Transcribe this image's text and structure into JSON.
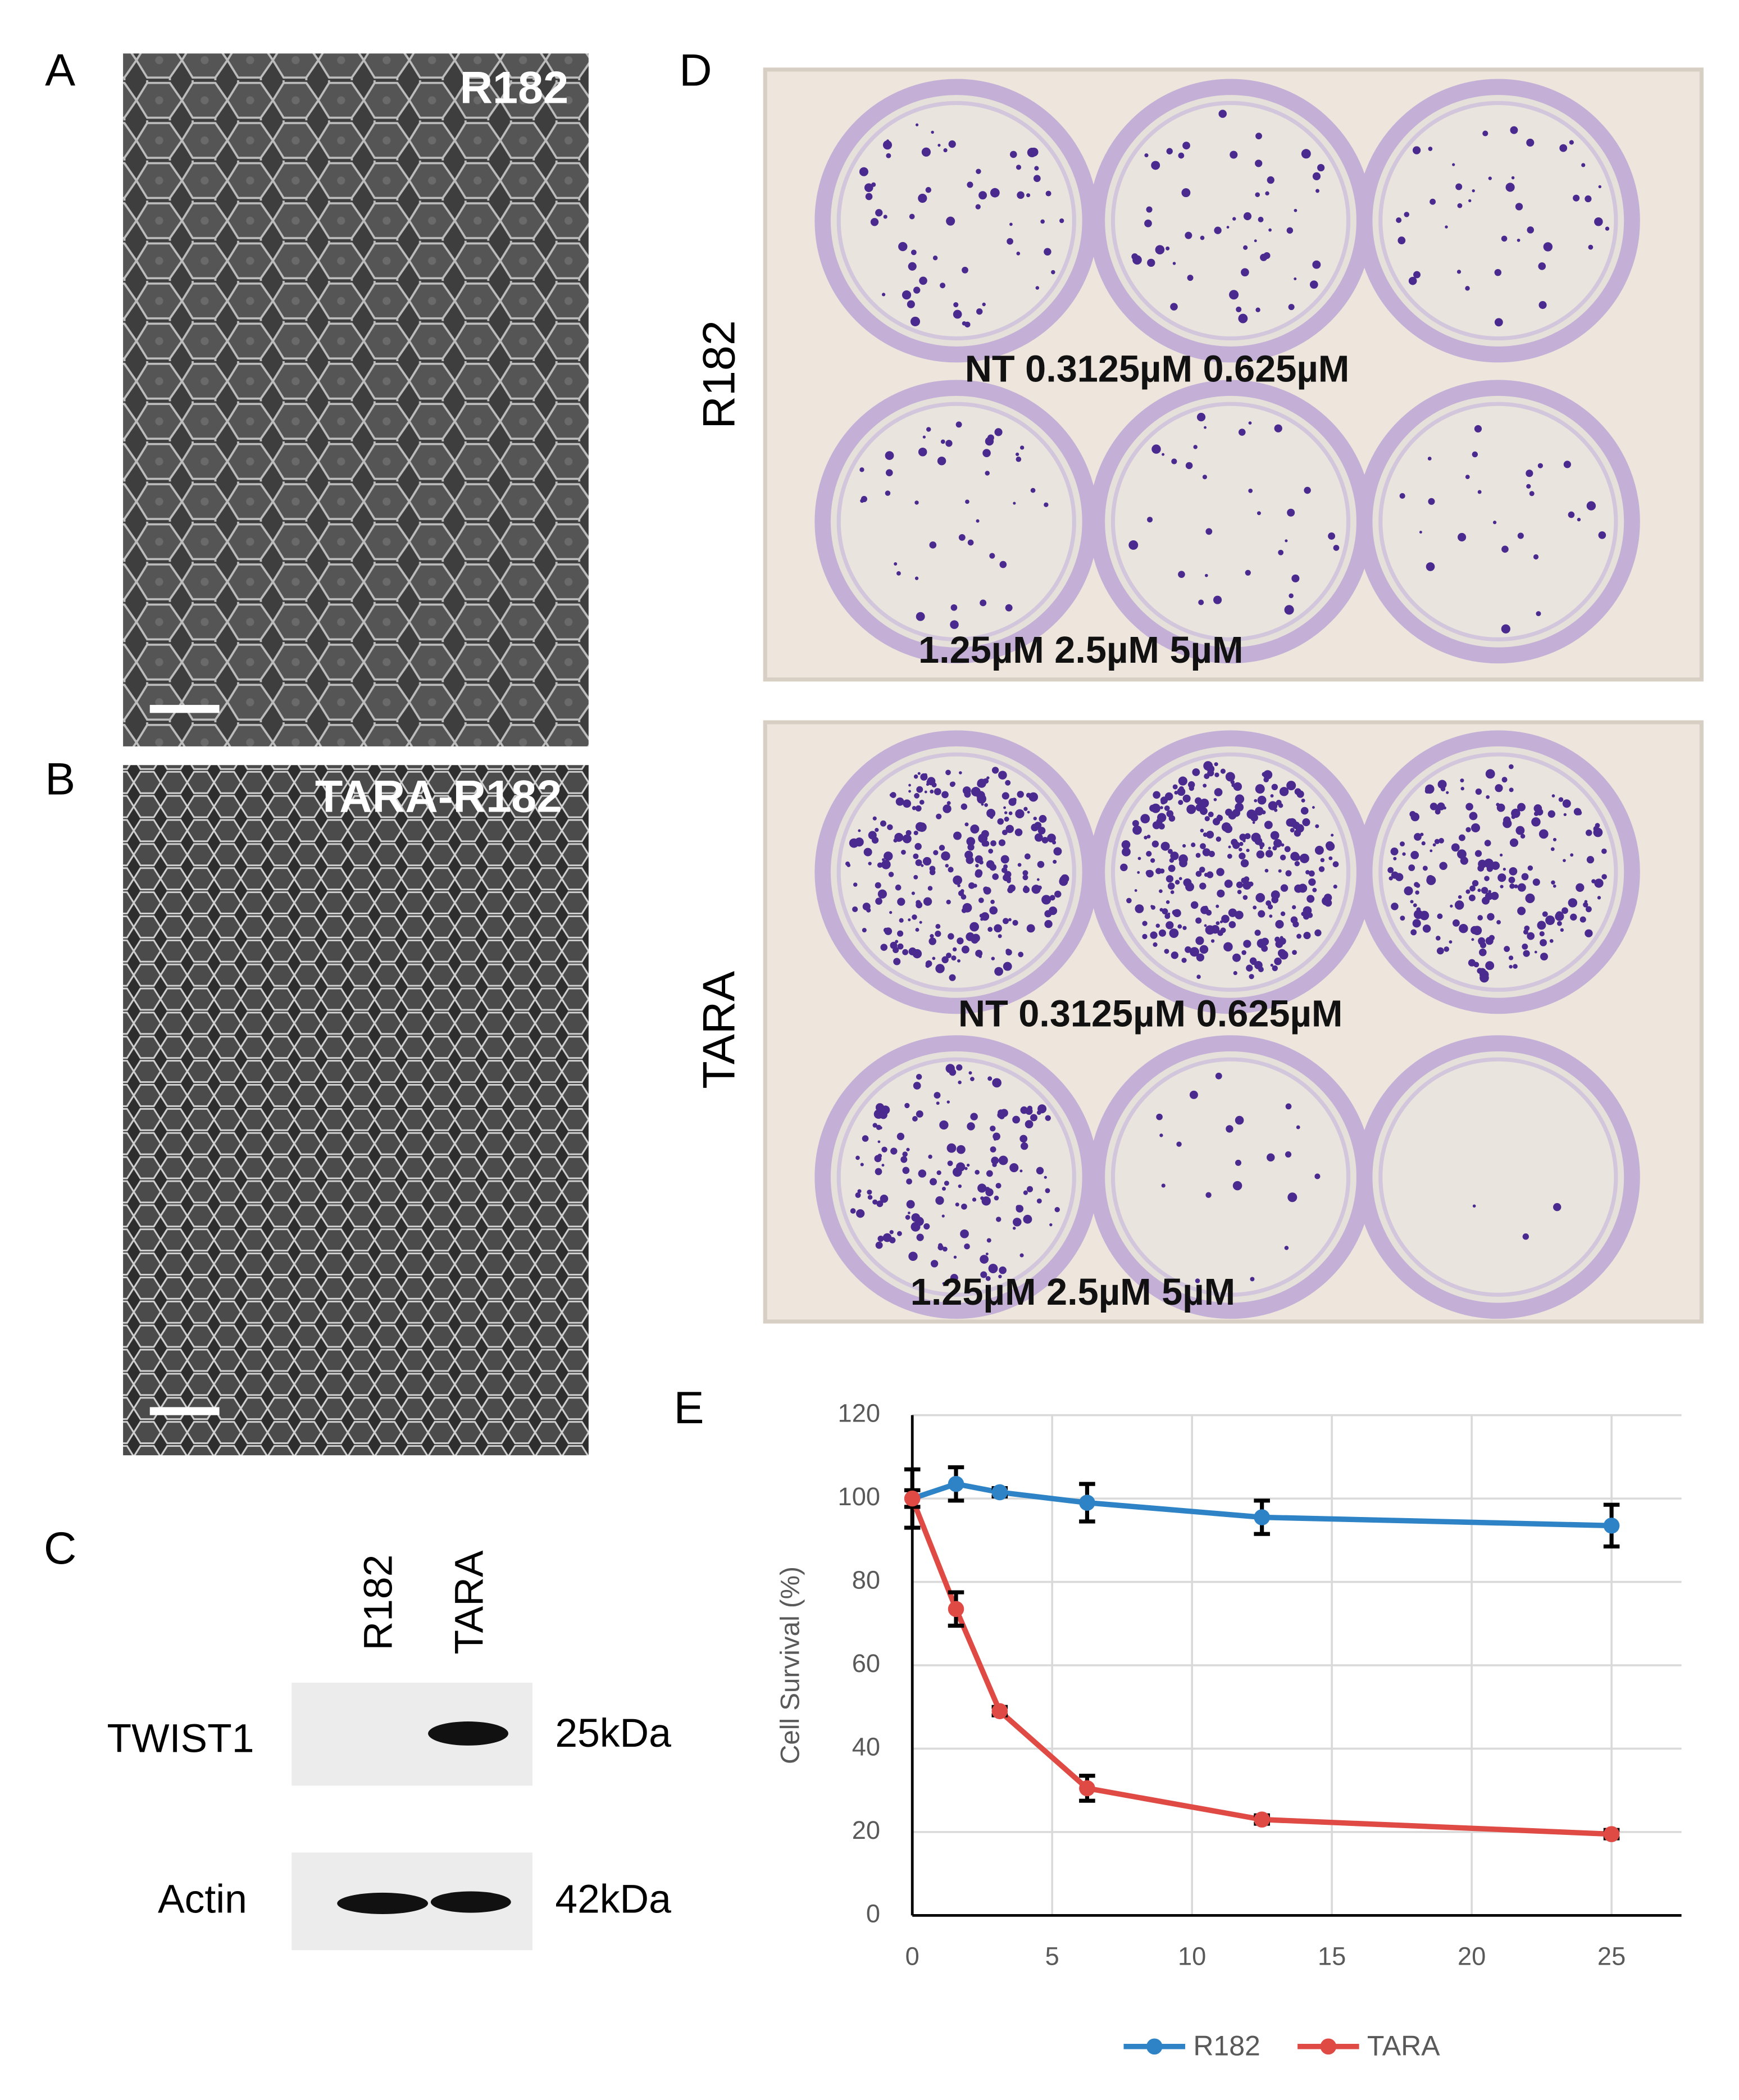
{
  "panels": {
    "a": {
      "label": "A",
      "caption": "R182"
    },
    "b": {
      "label": "B",
      "caption": "TARA-R182"
    },
    "c": {
      "label": "C",
      "lanes": [
        "R182",
        "TARA"
      ],
      "rows": [
        {
          "name": "TWIST1",
          "size": "25kDa"
        },
        {
          "name": "Actin",
          "size": "42kDa"
        }
      ]
    },
    "d": {
      "label": "D",
      "plates": [
        {
          "name": "R182",
          "top": "NT 0.3125µM 0.625µM",
          "bottom": "1.25µM 2.5µM 5µM"
        },
        {
          "name": "TARA",
          "top": "NT 0.3125µM 0.625µM",
          "bottom": "1.25µM 2.5µM 5µM"
        }
      ]
    },
    "e": {
      "label": "E"
    }
  },
  "chart_data": {
    "type": "line",
    "y_label": "Cell Survival (%)",
    "x": [
      0,
      1.5625,
      3.125,
      6.25,
      12.5,
      25
    ],
    "series": [
      {
        "name": "R182",
        "color": "#2e83c6",
        "values": [
          100,
          103.5,
          101.5,
          99,
          95.5,
          93.5
        ],
        "errors": [
          7,
          4,
          1,
          4.5,
          4,
          5
        ]
      },
      {
        "name": "TARA",
        "color": "#e04a44",
        "values": [
          100,
          73.5,
          49,
          30.5,
          23,
          19.5
        ],
        "errors": [
          2,
          4,
          1,
          3,
          1,
          1
        ]
      }
    ],
    "xlim": [
      0,
      27.5
    ],
    "xticks": [
      0,
      5,
      10,
      15,
      20,
      25
    ],
    "ylim": [
      0,
      120
    ],
    "yticks": [
      0,
      20,
      40,
      60,
      80,
      100,
      120
    ],
    "grid": true,
    "legend": "bottom"
  }
}
